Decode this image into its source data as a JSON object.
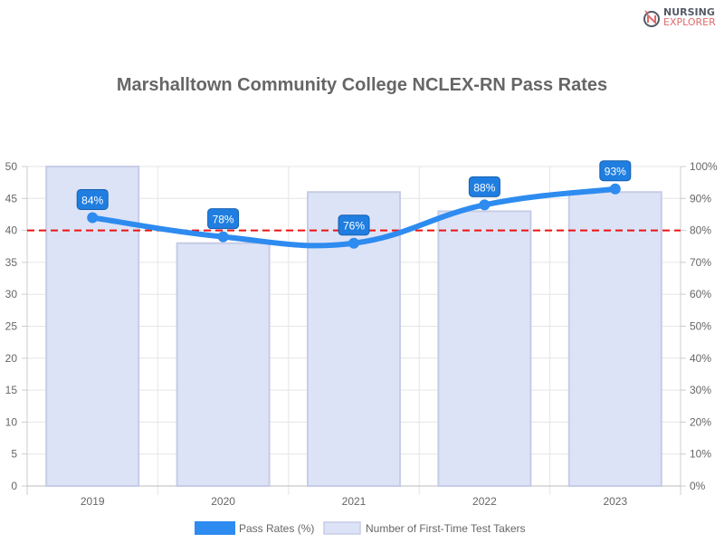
{
  "logo": {
    "line1": "NURSING",
    "line2": "EXPLORER"
  },
  "chart_data": {
    "type": "bar+line",
    "title": "Marshalltown Community College NCLEX-RN Pass Rates",
    "categories": [
      "2019",
      "2020",
      "2021",
      "2022",
      "2023"
    ],
    "series": [
      {
        "name": "Pass Rates (%)",
        "type": "line",
        "axis": "right",
        "values": [
          84,
          78,
          76,
          88,
          93
        ],
        "labels": [
          "84%",
          "78%",
          "76%",
          "88%",
          "93%"
        ],
        "color": "#2e8bef"
      },
      {
        "name": "Number of First-Time Test Takers",
        "type": "bar",
        "axis": "left",
        "values": [
          50,
          38,
          46,
          43,
          46
        ],
        "color": "#dce3f7"
      }
    ],
    "left_axis": {
      "ylim": [
        0,
        50
      ],
      "ticks": [
        "0",
        "5",
        "10",
        "15",
        "20",
        "25",
        "30",
        "35",
        "40",
        "45",
        "50"
      ]
    },
    "right_axis": {
      "ylim": [
        0,
        100
      ],
      "ticks": [
        "0%",
        "10%",
        "20%",
        "30%",
        "40%",
        "50%",
        "60%",
        "70%",
        "80%",
        "90%",
        "100%"
      ]
    },
    "reference_line": {
      "value": 80,
      "axis": "right",
      "color": "#ee1111",
      "style": "dashed"
    },
    "grid": true,
    "legend_placement": "bottom"
  }
}
